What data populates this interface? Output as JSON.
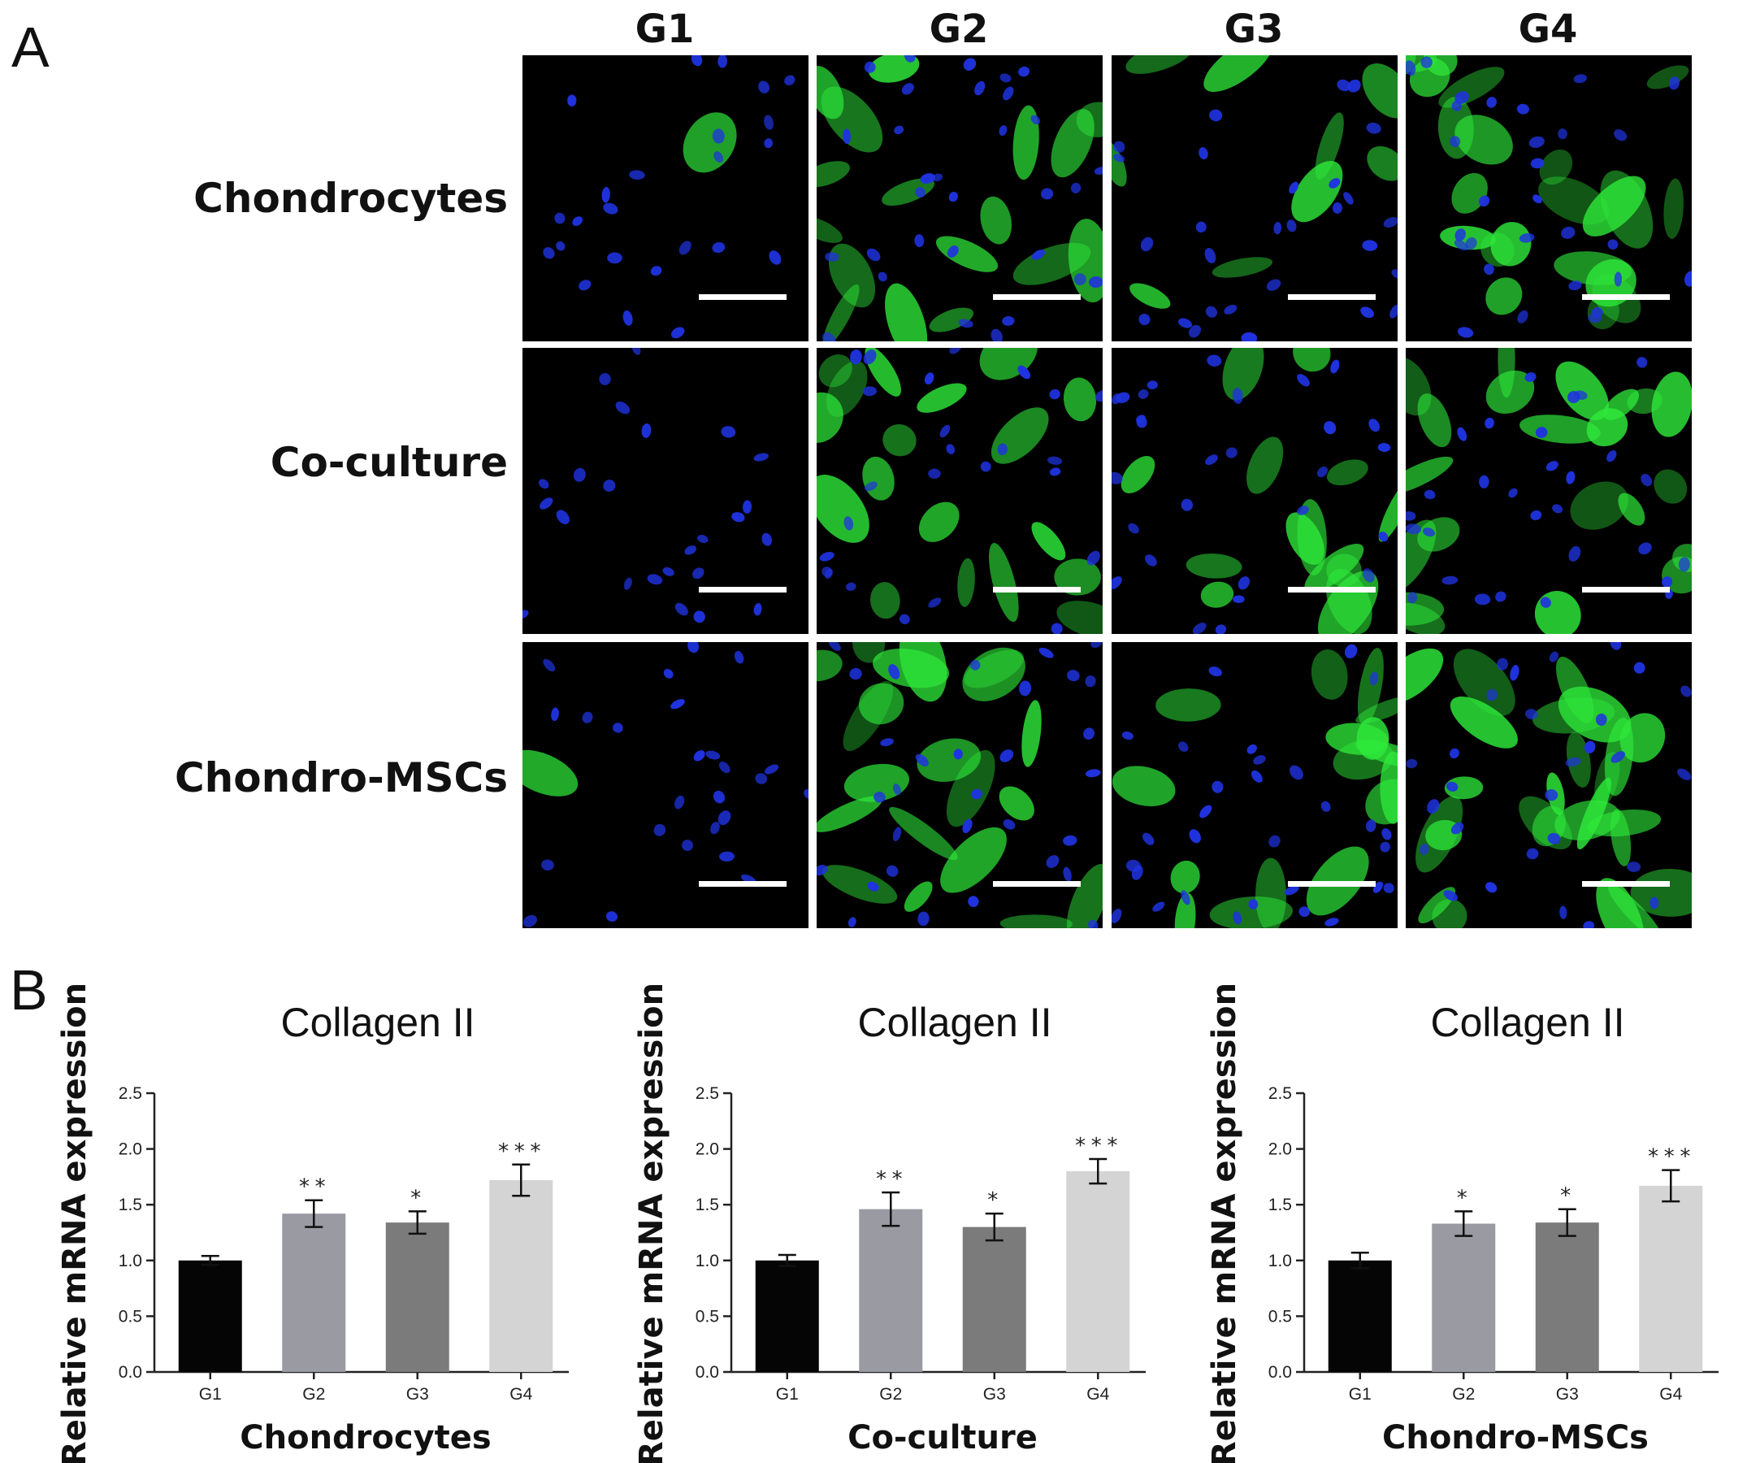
{
  "panel_labels": {
    "a": "A",
    "b": "B"
  },
  "microscopy": {
    "columns": [
      "G1",
      "G2",
      "G3",
      "G4"
    ],
    "rows": [
      "Chondrocytes",
      "Co-culture",
      "Chondro-MSCs"
    ],
    "colors": {
      "background": "#000000",
      "nucleus": "#1f33e0",
      "collagen_stain": "#2ee83a",
      "scale_bar": "#ffffff"
    },
    "green_intensity": [
      [
        0.05,
        0.65,
        0.35,
        0.85
      ],
      [
        0.0,
        0.7,
        0.55,
        0.8
      ],
      [
        0.05,
        0.75,
        0.6,
        0.95
      ]
    ]
  },
  "chart_data": [
    {
      "type": "bar",
      "title": "Collagen II",
      "xlabel": "Chondrocytes",
      "ylabel": "Relative mRNA expression",
      "ylim": [
        0,
        2.5
      ],
      "yticks": [
        "0.0",
        "0.5",
        "1.0",
        "1.5",
        "2.0",
        "2.5"
      ],
      "categories": [
        "G1",
        "G2",
        "G3",
        "G4"
      ],
      "values": [
        1.0,
        1.42,
        1.34,
        1.72
      ],
      "errors": [
        0.04,
        0.12,
        0.1,
        0.14
      ],
      "significance": [
        "",
        "**",
        "*",
        "***"
      ],
      "colors": [
        "#050505",
        "#9a9aa3",
        "#7b7b7b",
        "#d4d4d4"
      ]
    },
    {
      "type": "bar",
      "title": "Collagen II",
      "xlabel": "Co-culture",
      "ylabel": "Relative mRNA expression",
      "ylim": [
        0,
        2.5
      ],
      "yticks": [
        "0.0",
        "0.5",
        "1.0",
        "1.5",
        "2.0",
        "2.5"
      ],
      "categories": [
        "G1",
        "G2",
        "G3",
        "G4"
      ],
      "values": [
        1.0,
        1.46,
        1.3,
        1.8
      ],
      "errors": [
        0.05,
        0.15,
        0.12,
        0.11
      ],
      "significance": [
        "",
        "**",
        "*",
        "***"
      ],
      "colors": [
        "#050505",
        "#9a9aa3",
        "#7b7b7b",
        "#d4d4d4"
      ]
    },
    {
      "type": "bar",
      "title": "Collagen II",
      "xlabel": "Chondro-MSCs",
      "ylabel": "Relative mRNA expression",
      "ylim": [
        0,
        2.5
      ],
      "yticks": [
        "0.0",
        "0.5",
        "1.0",
        "1.5",
        "2.0",
        "2.5"
      ],
      "categories": [
        "G1",
        "G2",
        "G3",
        "G4"
      ],
      "values": [
        1.0,
        1.33,
        1.34,
        1.67
      ],
      "errors": [
        0.07,
        0.11,
        0.12,
        0.14
      ],
      "significance": [
        "",
        "*",
        "*",
        "***"
      ],
      "colors": [
        "#050505",
        "#9a9aa3",
        "#7b7b7b",
        "#d4d4d4"
      ]
    }
  ]
}
